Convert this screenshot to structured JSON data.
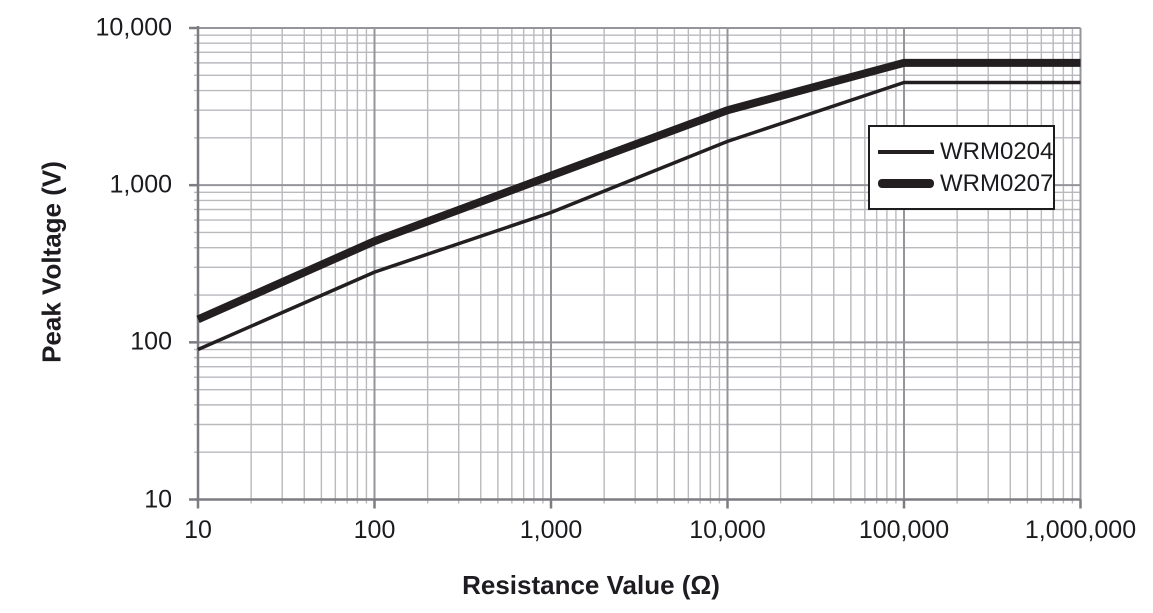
{
  "chart_data": {
    "type": "line",
    "title": "",
    "xlabel": "Resistance Value (Ω)",
    "ylabel": "Peak Voltage (V)",
    "xscale": "log",
    "yscale": "log",
    "xlim": [
      10,
      1000000
    ],
    "ylim": [
      10,
      10000
    ],
    "xtick_labels": [
      "10",
      "100",
      "1,000",
      "10,000",
      "100,000",
      "1,000,000"
    ],
    "ytick_labels": [
      "10",
      "100",
      "1,000",
      "10,000"
    ],
    "grid": "log major + minor gridlines, gray, both axes",
    "legend_position": "inside upper right, bordered box",
    "series": [
      {
        "name": "WRM0204",
        "weight": "thin",
        "x": [
          10,
          100,
          1000,
          10000,
          100000,
          1000000
        ],
        "y": [
          90,
          280,
          670,
          1900,
          4500,
          4500
        ]
      },
      {
        "name": "WRM0207",
        "weight": "thick",
        "x": [
          10,
          100,
          1000,
          10000,
          100000,
          1000000
        ],
        "y": [
          140,
          440,
          1150,
          3000,
          6000,
          6000
        ]
      }
    ],
    "colors": {
      "line": "#231f20",
      "grid_minor": "#b9b9be",
      "grid_major": "#94949b",
      "axis": "#7c7c82",
      "text": "#1b1b1f"
    }
  }
}
